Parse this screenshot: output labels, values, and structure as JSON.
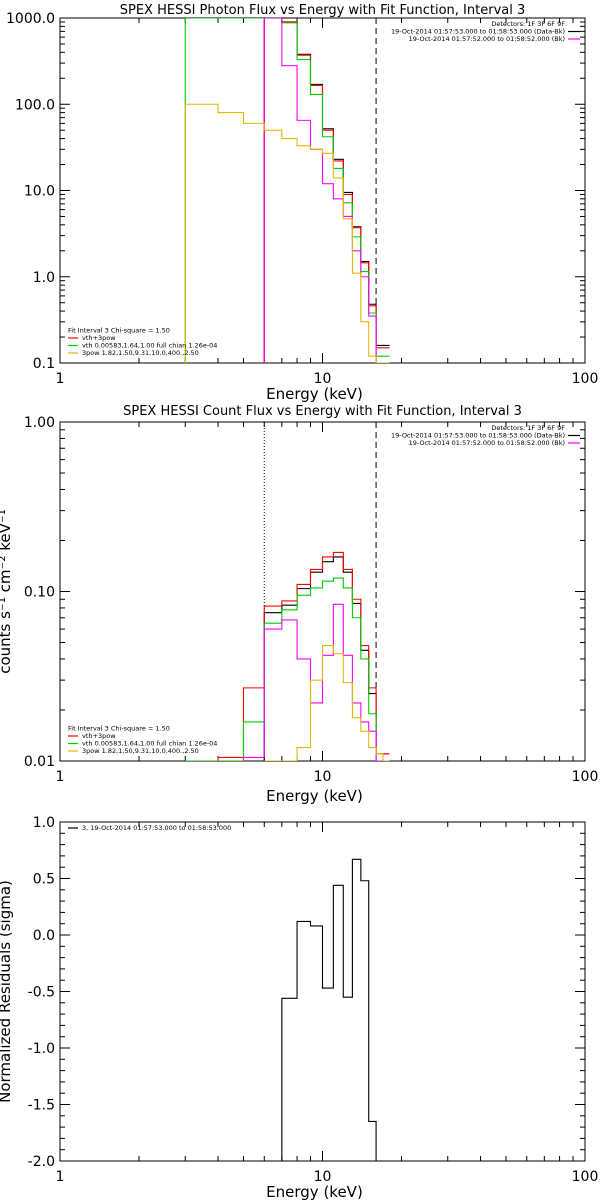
{
  "chart_data": [
    {
      "type": "line",
      "title": "SPEX HESSI Photon Flux vs Energy with Fit Function, Interval 3",
      "xlabel": "Energy (keV)",
      "ylabel": "",
      "xscale": "log",
      "yscale": "log",
      "xlim": [
        1,
        100
      ],
      "ylim": [
        0.1,
        1000
      ],
      "x_tick_labels": [
        "1",
        "10",
        "100"
      ],
      "y_tick_labels": [
        "0.1",
        "1.0",
        "10.0",
        "100.0",
        "1000.0"
      ],
      "vlines": [
        {
          "x": 6.0,
          "style": "dotted"
        },
        {
          "x": 16.0,
          "style": "dashed"
        }
      ],
      "legend_right": {
        "position": "top-right",
        "lines": [
          {
            "text": "Detectors: 1F 3F 6F 9F",
            "color": ""
          },
          {
            "text": "19-Oct-2014 01:57:53.000 to 01:58:53.000 (Data-Bk)",
            "color": "#000000"
          },
          {
            "text": "19-Oct-2014 01:57:52.000 to 01:58:52.000 (Bk)",
            "color": "#ff00ff"
          }
        ]
      },
      "legend_left": {
        "position": "bottom-left",
        "lines": [
          {
            "text": "Fit Interval 3   Chi-square = 1.50",
            "color": ""
          },
          {
            "text": "vth+3pow",
            "color": "#ff0000"
          },
          {
            "text": "vth 0.00583,1.64,1.00  full chian 1.26e-04",
            "color": "#00cc00"
          },
          {
            "text": "3pow 1.82,1.50,9.31,10.0,400.,2.50",
            "color": "#e6b800"
          }
        ]
      },
      "series": [
        {
          "color": "#000000",
          "edges": [
            6,
            7,
            8,
            9,
            10,
            11,
            12,
            13,
            14,
            15,
            16,
            17,
            18
          ],
          "values": [
            1000,
            900,
            380,
            170,
            52,
            23,
            9.5,
            3.8,
            1.5,
            0.48,
            0.16,
            0.16
          ]
        },
        {
          "color": "#ff0000",
          "edges": [
            6,
            7,
            8,
            9,
            10,
            11,
            12,
            13,
            14,
            15,
            16,
            17,
            18
          ],
          "values": [
            1000,
            900,
            370,
            165,
            50,
            22,
            9,
            3.7,
            1.45,
            0.46,
            0.15,
            0.15
          ]
        },
        {
          "color": "#00cc00",
          "edges": [
            3,
            4,
            5,
            6,
            7,
            8,
            9,
            10,
            11,
            12,
            13,
            14,
            15,
            16,
            17,
            18
          ],
          "values": [
            1000,
            1000,
            1000,
            1000,
            880,
            330,
            130,
            42,
            18,
            7.2,
            2.9,
            1.15,
            0.38,
            0.12,
            0.12
          ]
        },
        {
          "color": "#ff00ff",
          "edges": [
            6,
            7,
            8,
            9,
            10,
            11,
            12,
            13,
            14,
            15,
            16,
            17,
            18
          ],
          "values": [
            1000,
            280,
            65,
            30,
            12,
            8,
            5,
            2,
            1,
            0.35,
            0.1,
            0.1
          ]
        },
        {
          "color": "#e6b800",
          "edges": [
            3,
            4,
            5,
            6,
            7,
            8,
            9,
            10,
            11,
            12,
            13,
            14,
            15,
            16,
            17,
            18
          ],
          "values": [
            100,
            80,
            60,
            50,
            40,
            33,
            30,
            27,
            14,
            4.7,
            1.1,
            0.3,
            0.12,
            0.1,
            0.1
          ]
        }
      ]
    },
    {
      "type": "line",
      "title": "SPEX HESSI Count Flux vs Energy with Fit Function, Interval 3",
      "xlabel": "Energy (keV)",
      "ylabel": "counts s⁻¹ cm⁻² keV⁻¹",
      "xscale": "log",
      "yscale": "log",
      "xlim": [
        1,
        100
      ],
      "ylim": [
        0.01,
        1
      ],
      "x_tick_labels": [
        "1",
        "10",
        "100"
      ],
      "y_tick_labels": [
        "0.01",
        "0.10",
        "1.00"
      ],
      "vlines": [
        {
          "x": 6.0,
          "style": "dotted"
        },
        {
          "x": 16.0,
          "style": "dashed"
        }
      ],
      "legend_right": {
        "position": "top-right",
        "lines": [
          {
            "text": "Detectors: 1F 3F 6F 9F",
            "color": ""
          },
          {
            "text": "19-Oct-2014 01:57:53.000 to 01:58:53.000 (Data-Bk)",
            "color": "#000000"
          },
          {
            "text": "19-Oct-2014 01:57:52.000 to 01:58:52.000 (Bk)",
            "color": "#ff00ff"
          }
        ]
      },
      "legend_left": {
        "position": "bottom-left",
        "lines": [
          {
            "text": "Fit Interval 3   Chi-square = 1.50",
            "color": ""
          },
          {
            "text": "vth+3pow",
            "color": "#ff0000"
          },
          {
            "text": "vth 0.00583,1.64,1.00  full chian 1.26e-04",
            "color": "#00cc00"
          },
          {
            "text": "3pow 1.82,1.50,9.31,10.0,400.,2.50",
            "color": "#e6b800"
          }
        ]
      },
      "series": [
        {
          "color": "#000000",
          "edges": [
            6,
            7,
            8,
            9,
            10,
            11,
            12,
            13,
            14,
            15,
            16,
            17,
            18
          ],
          "values": [
            0.075,
            0.083,
            0.104,
            0.13,
            0.15,
            0.16,
            0.13,
            0.085,
            0.045,
            0.025,
            0.011,
            0.011
          ]
        },
        {
          "color": "#ff0000",
          "edges": [
            3,
            4,
            5,
            6,
            7,
            8,
            9,
            10,
            11,
            12,
            13,
            14,
            15,
            16,
            17,
            18
          ],
          "values": [
            0.01,
            0.0105,
            0.027,
            0.082,
            0.088,
            0.11,
            0.135,
            0.16,
            0.17,
            0.135,
            0.09,
            0.048,
            0.027,
            0.011,
            0.011
          ]
        },
        {
          "color": "#00cc00",
          "edges": [
            3,
            4,
            5,
            6,
            7,
            8,
            9,
            10,
            11,
            12,
            13,
            14,
            15,
            16,
            17,
            18
          ],
          "values": [
            0.01,
            0.01,
            0.017,
            0.065,
            0.078,
            0.095,
            0.105,
            0.115,
            0.12,
            0.105,
            0.07,
            0.04,
            0.019,
            0.01,
            0.01
          ]
        },
        {
          "color": "#ff00ff",
          "edges": [
            5,
            6,
            7,
            8,
            9,
            10,
            11,
            12,
            13,
            14,
            15,
            16,
            17
          ],
          "values": [
            0.0105,
            0.06,
            0.068,
            0.04,
            0.022,
            0.042,
            0.084,
            0.042,
            0.022,
            0.017,
            0.015,
            0.01
          ]
        },
        {
          "color": "#e6b800",
          "edges": [
            6,
            7,
            8,
            9,
            10,
            11,
            12,
            13,
            14,
            15,
            16,
            17,
            18
          ],
          "values": [
            0.01,
            0.01,
            0.012,
            0.03,
            0.048,
            0.043,
            0.029,
            0.018,
            0.015,
            0.012,
            0.011,
            0.01
          ]
        }
      ]
    },
    {
      "type": "line",
      "title": "",
      "xlabel": "Energy (keV)",
      "ylabel": "Normalized Residuals (sigma)",
      "xscale": "log",
      "yscale": "linear",
      "xlim": [
        1,
        100
      ],
      "ylim": [
        -2,
        1
      ],
      "x_tick_labels": [
        "1",
        "10",
        "100"
      ],
      "y_tick_labels": [
        "-2.0",
        "-1.5",
        "-1.0",
        "-0.5",
        "0.0",
        "0.5",
        "1.0"
      ],
      "legend_left": {
        "position": "top-left",
        "lines": [
          {
            "text": "3, 19-Oct-2014 01:57:53.000 to 01:58:53.000",
            "color": "#000000"
          }
        ]
      },
      "series": [
        {
          "color": "#000000",
          "edges": [
            6,
            7,
            8,
            9,
            10,
            11,
            12,
            13,
            14,
            15,
            16,
            17
          ],
          "values": [
            -2,
            -0.56,
            0.12,
            0.08,
            -0.47,
            0.44,
            -0.55,
            0.67,
            0.48,
            -1.65,
            -2
          ]
        }
      ]
    }
  ]
}
